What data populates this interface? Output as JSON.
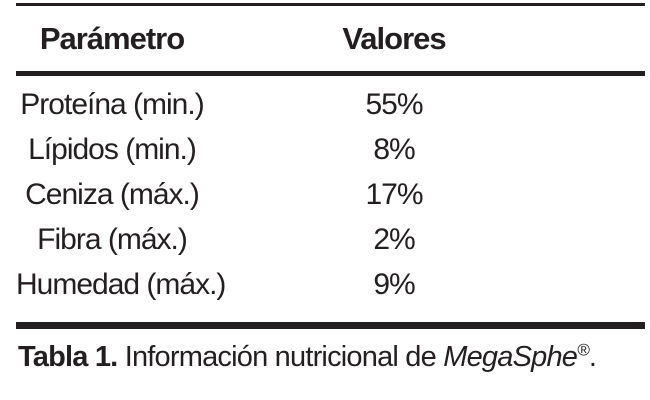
{
  "table": {
    "headers": {
      "parameter": "Parámetro",
      "values": "Valores"
    },
    "rows": [
      {
        "parameter": "Proteína (min.)",
        "value": "55%"
      },
      {
        "parameter": "Lípidos (min.)",
        "value": "8%"
      },
      {
        "parameter": "Ceniza (máx.)",
        "value": "17%"
      },
      {
        "parameter": "Fibra (máx.)",
        "value": "2%"
      },
      {
        "parameter": "Humedad (máx.)",
        "value": "9%"
      }
    ]
  },
  "caption": {
    "label": "Tabla 1.",
    "body": " Información nutricional de ",
    "brand": "MegaSphe",
    "registered_mark": "®",
    "terminator": "."
  },
  "chart_data": {
    "type": "table",
    "title": "Tabla 1. Información nutricional de MegaSphe®.",
    "columns": [
      "Parámetro",
      "Valores"
    ],
    "rows": [
      [
        "Proteína (min.)",
        "55%"
      ],
      [
        "Lípidos (min.)",
        "8%"
      ],
      [
        "Ceniza (máx.)",
        "17%"
      ],
      [
        "Fibra (máx.)",
        "2%"
      ],
      [
        "Humedad (máx.)",
        "9%"
      ]
    ]
  },
  "colors": {
    "text": "#231f20",
    "rule": "#231f20",
    "background": "#ffffff"
  }
}
